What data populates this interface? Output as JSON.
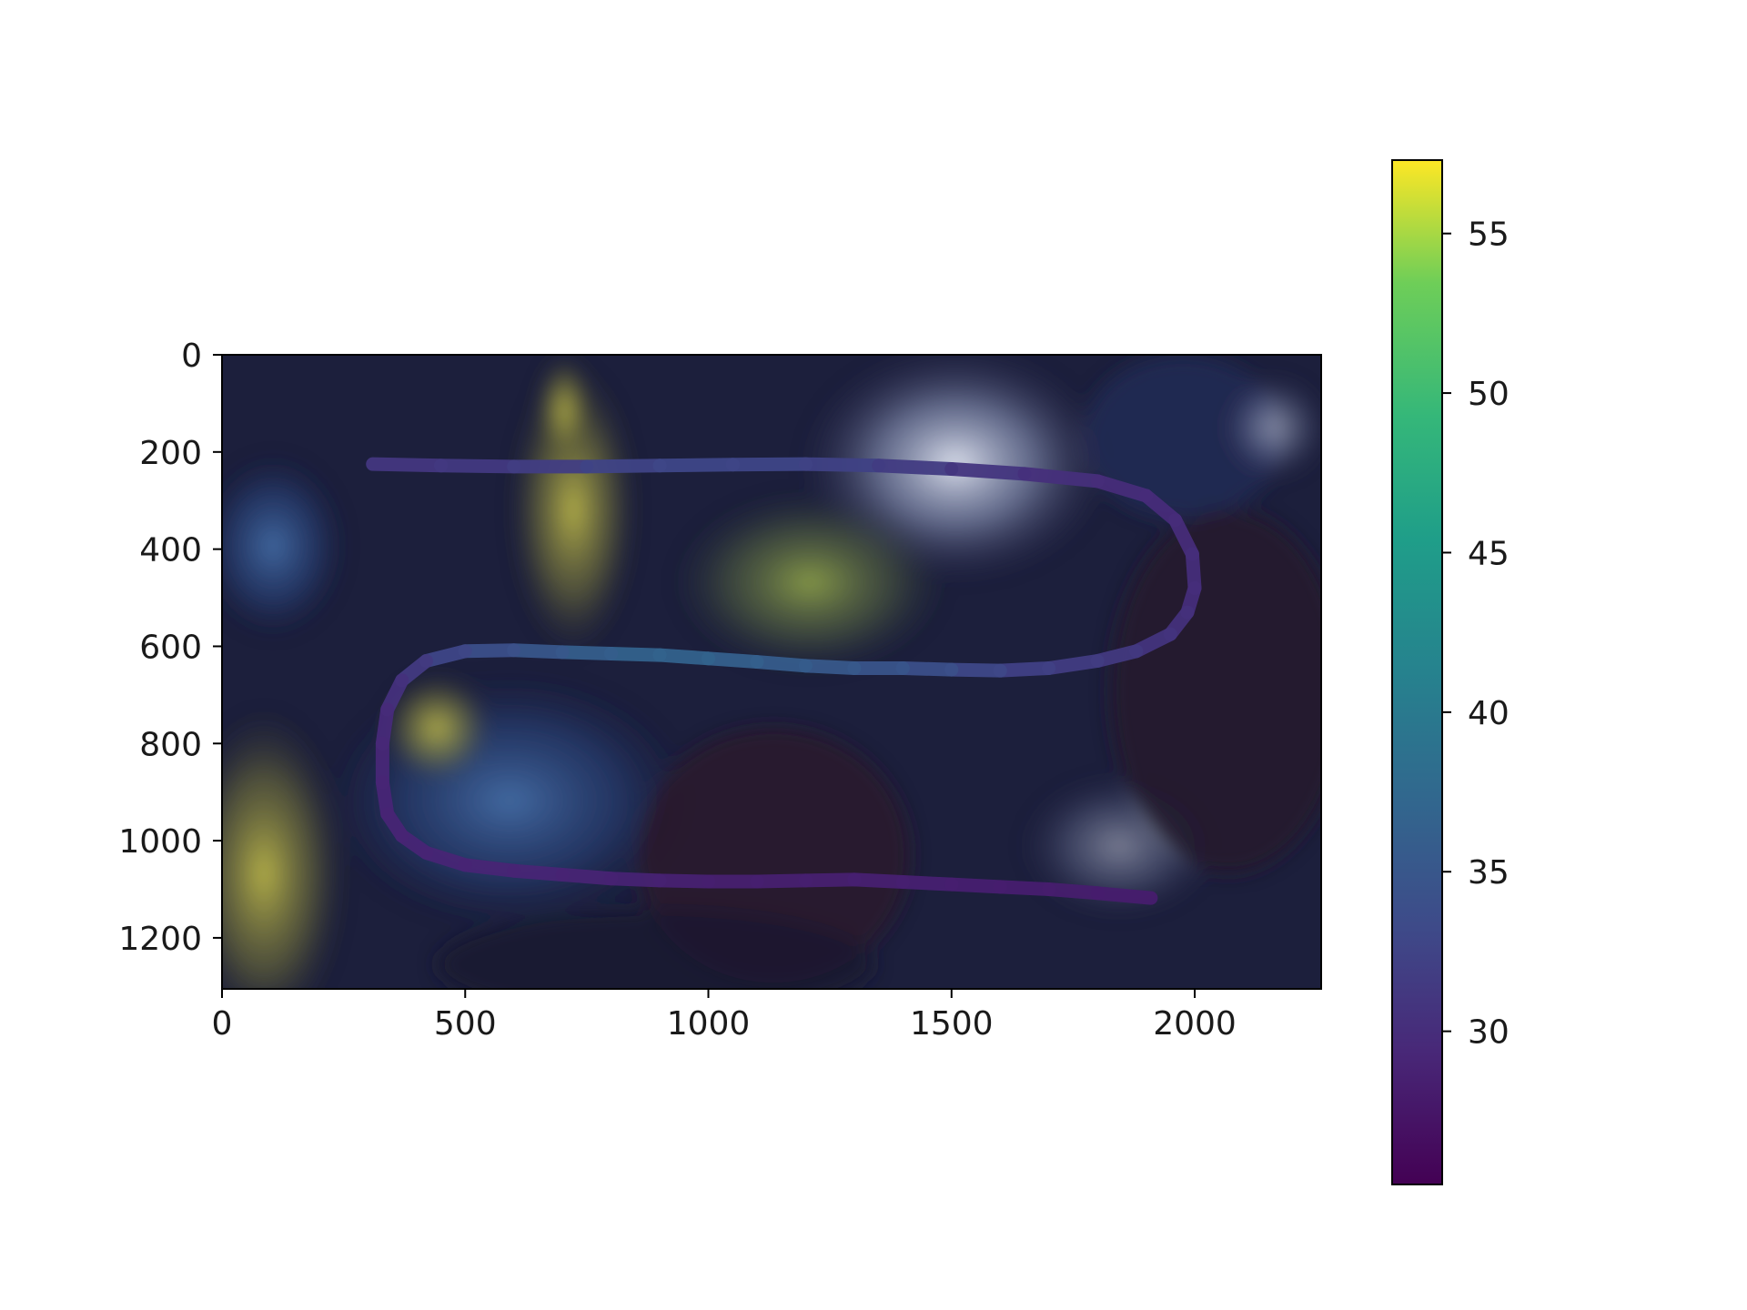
{
  "chart_data": {
    "type": "scatter",
    "title": "",
    "xlabel": "",
    "ylabel": "",
    "image_extent": {
      "x": [
        0,
        2260
      ],
      "y": [
        0,
        1305
      ]
    },
    "y_inverted": true,
    "grid": false,
    "x_ticks": [
      0,
      500,
      1000,
      1500,
      2000
    ],
    "y_ticks": [
      0,
      200,
      400,
      600,
      800,
      1000,
      1200
    ],
    "colorbar": {
      "colormap": "viridis",
      "range": [
        25.2,
        57.3
      ],
      "ticks": [
        30,
        35,
        40,
        45,
        50,
        55
      ]
    },
    "path": {
      "x": [
        310,
        450,
        600,
        750,
        900,
        1050,
        1200,
        1350,
        1500,
        1650,
        1800,
        1900,
        1960,
        1995,
        2000,
        1985,
        1950,
        1880,
        1800,
        1700,
        1600,
        1500,
        1400,
        1300,
        1200,
        1100,
        1000,
        900,
        800,
        700,
        600,
        500,
        420,
        370,
        340,
        330,
        330,
        340,
        370,
        420,
        500,
        600,
        700,
        800,
        900,
        1000,
        1100,
        1200,
        1300,
        1400,
        1500,
        1600,
        1700,
        1800,
        1910
      ],
      "y": [
        225,
        228,
        230,
        230,
        228,
        226,
        225,
        228,
        235,
        245,
        260,
        290,
        340,
        410,
        480,
        530,
        575,
        610,
        630,
        645,
        650,
        648,
        645,
        645,
        640,
        632,
        625,
        618,
        615,
        612,
        608,
        610,
        630,
        670,
        730,
        800,
        880,
        945,
        990,
        1025,
        1050,
        1062,
        1070,
        1078,
        1082,
        1084,
        1084,
        1082,
        1080,
        1085,
        1090,
        1095,
        1100,
        1108,
        1118
      ],
      "c": [
        31.0,
        31.2,
        31.5,
        32.2,
        32.8,
        33.0,
        32.6,
        32.0,
        31.2,
        30.5,
        30.0,
        29.8,
        29.8,
        30.0,
        30.0,
        30.2,
        30.5,
        31.0,
        31.5,
        32.0,
        32.5,
        33.5,
        34.5,
        35.0,
        35.5,
        36.0,
        36.5,
        36.8,
        36.5,
        35.5,
        34.5,
        33.5,
        32.0,
        30.8,
        30.0,
        29.5,
        29.2,
        29.0,
        29.0,
        29.0,
        29.0,
        29.0,
        29.0,
        28.8,
        28.8,
        28.5,
        28.5,
        28.5,
        28.5,
        28.6,
        28.5,
        28.4,
        28.3,
        28.2,
        28.2
      ]
    }
  }
}
